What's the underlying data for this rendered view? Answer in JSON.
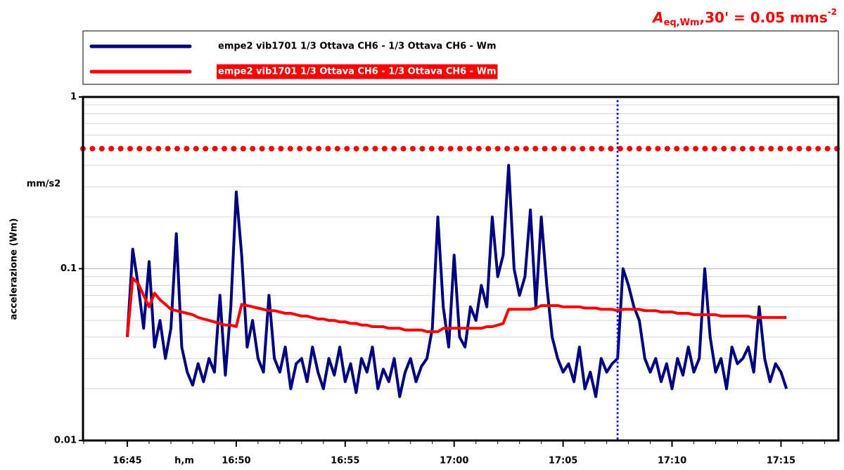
{
  "chart_data": {
    "type": "line",
    "annotation": {
      "symbol": "A",
      "subscript": "eq,Wm",
      "text": ",30' = 0.05 mms",
      "superscript": "-2"
    },
    "y_label": "accelerazione (Wm)",
    "y_unit": "mm/s2",
    "x_label": "h,m",
    "log_y": true,
    "grid": true,
    "ylim": [
      0.01,
      1
    ],
    "yticks": [
      0.01,
      0.1,
      1
    ],
    "xlim": [
      "16:42:58",
      "17:17:38"
    ],
    "xticks": [
      "16:45",
      "16:50",
      "16:55",
      "17:00",
      "17:05",
      "17:10",
      "17:15"
    ],
    "hline": {
      "value": 0.5,
      "color": "#ff0000"
    },
    "vline": {
      "x": "17:07:30",
      "color": "#0000ff"
    },
    "x": [
      "16:45:00",
      "16:45:15",
      "16:45:30",
      "16:45:45",
      "16:46:00",
      "16:46:15",
      "16:46:30",
      "16:46:45",
      "16:47:00",
      "16:47:15",
      "16:47:30",
      "16:47:45",
      "16:48:00",
      "16:48:15",
      "16:48:30",
      "16:48:45",
      "16:49:00",
      "16:49:15",
      "16:49:30",
      "16:49:45",
      "16:50:00",
      "16:50:15",
      "16:50:30",
      "16:50:45",
      "16:51:00",
      "16:51:15",
      "16:51:30",
      "16:51:45",
      "16:52:00",
      "16:52:15",
      "16:52:30",
      "16:52:45",
      "16:53:00",
      "16:53:15",
      "16:53:30",
      "16:53:45",
      "16:54:00",
      "16:54:15",
      "16:54:30",
      "16:54:45",
      "16:55:00",
      "16:55:15",
      "16:55:30",
      "16:55:45",
      "16:56:00",
      "16:56:15",
      "16:56:30",
      "16:56:45",
      "16:57:00",
      "16:57:15",
      "16:57:30",
      "16:57:45",
      "16:58:00",
      "16:58:15",
      "16:58:30",
      "16:58:45",
      "16:59:00",
      "16:59:15",
      "16:59:30",
      "16:59:45",
      "17:00:00",
      "17:00:15",
      "17:00:30",
      "17:00:45",
      "17:01:00",
      "17:01:15",
      "17:01:30",
      "17:01:45",
      "17:02:00",
      "17:02:15",
      "17:02:30",
      "17:02:45",
      "17:03:00",
      "17:03:15",
      "17:03:30",
      "17:03:45",
      "17:04:00",
      "17:04:15",
      "17:04:30",
      "17:04:45",
      "17:05:00",
      "17:05:15",
      "17:05:30",
      "17:05:45",
      "17:06:00",
      "17:06:15",
      "17:06:30",
      "17:06:45",
      "17:07:00",
      "17:07:15",
      "17:07:30",
      "17:07:45",
      "17:08:00",
      "17:08:15",
      "17:08:30",
      "17:08:45",
      "17:09:00",
      "17:09:15",
      "17:09:30",
      "17:09:45",
      "17:10:00",
      "17:10:15",
      "17:10:30",
      "17:10:45",
      "17:11:00",
      "17:11:15",
      "17:11:30",
      "17:11:45",
      "17:12:00",
      "17:12:15",
      "17:12:30",
      "17:12:45",
      "17:13:00",
      "17:13:15",
      "17:13:30",
      "17:13:45",
      "17:14:00",
      "17:14:15",
      "17:14:30",
      "17:14:45",
      "17:15:00",
      "17:15:15"
    ],
    "series": [
      {
        "name": "empe2 vib1701 1/3 Ottava CH6 - 1/3 Ottava CH6 - Wm",
        "color": "#000080",
        "values": [
          0.04,
          0.13,
          0.08,
          0.045,
          0.11,
          0.035,
          0.05,
          0.03,
          0.045,
          0.16,
          0.035,
          0.025,
          0.021,
          0.028,
          0.022,
          0.03,
          0.025,
          0.07,
          0.024,
          0.06,
          0.28,
          0.12,
          0.035,
          0.05,
          0.03,
          0.025,
          0.07,
          0.03,
          0.025,
          0.035,
          0.02,
          0.028,
          0.03,
          0.022,
          0.035,
          0.025,
          0.02,
          0.03,
          0.024,
          0.035,
          0.022,
          0.028,
          0.019,
          0.03,
          0.025,
          0.035,
          0.02,
          0.026,
          0.022,
          0.03,
          0.018,
          0.025,
          0.03,
          0.022,
          0.027,
          0.03,
          0.045,
          0.2,
          0.06,
          0.035,
          0.12,
          0.04,
          0.035,
          0.06,
          0.05,
          0.08,
          0.06,
          0.2,
          0.09,
          0.12,
          0.4,
          0.1,
          0.07,
          0.09,
          0.22,
          0.06,
          0.2,
          0.08,
          0.04,
          0.03,
          0.025,
          0.028,
          0.022,
          0.035,
          0.02,
          0.025,
          0.018,
          0.03,
          0.025,
          0.028,
          0.03,
          0.1,
          0.08,
          0.06,
          0.05,
          0.03,
          0.025,
          0.03,
          0.022,
          0.028,
          0.02,
          0.03,
          0.024,
          0.035,
          0.025,
          0.03,
          0.1,
          0.04,
          0.025,
          0.03,
          0.02,
          0.035,
          0.028,
          0.03,
          0.035,
          0.025,
          0.06,
          0.03,
          0.022,
          0.028,
          0.025,
          0.02
        ]
      },
      {
        "name": "empe2 vib1701 1/3 Ottava CH6 - 1/3 Ottava CH6 - Wm",
        "color": "#ff0000",
        "values": [
          0.04,
          0.088,
          0.082,
          0.07,
          0.06,
          0.072,
          0.066,
          0.062,
          0.058,
          0.057,
          0.056,
          0.055,
          0.054,
          0.052,
          0.051,
          0.05,
          0.049,
          0.048,
          0.047,
          0.047,
          0.046,
          0.062,
          0.061,
          0.06,
          0.059,
          0.058,
          0.057,
          0.057,
          0.056,
          0.055,
          0.055,
          0.054,
          0.053,
          0.053,
          0.052,
          0.051,
          0.051,
          0.05,
          0.05,
          0.049,
          0.049,
          0.048,
          0.048,
          0.047,
          0.047,
          0.046,
          0.046,
          0.046,
          0.045,
          0.045,
          0.045,
          0.044,
          0.044,
          0.044,
          0.044,
          0.043,
          0.043,
          0.043,
          0.045,
          0.045,
          0.045,
          0.045,
          0.045,
          0.045,
          0.045,
          0.045,
          0.046,
          0.046,
          0.047,
          0.048,
          0.058,
          0.058,
          0.058,
          0.058,
          0.058,
          0.059,
          0.061,
          0.061,
          0.061,
          0.061,
          0.06,
          0.06,
          0.06,
          0.06,
          0.059,
          0.059,
          0.059,
          0.058,
          0.058,
          0.058,
          0.057,
          0.058,
          0.058,
          0.058,
          0.058,
          0.057,
          0.057,
          0.057,
          0.056,
          0.056,
          0.056,
          0.055,
          0.055,
          0.055,
          0.054,
          0.054,
          0.054,
          0.054,
          0.054,
          0.053,
          0.053,
          0.053,
          0.053,
          0.053,
          0.053,
          0.052,
          0.052,
          0.052,
          0.052,
          0.052,
          0.052,
          0.052
        ]
      }
    ]
  }
}
